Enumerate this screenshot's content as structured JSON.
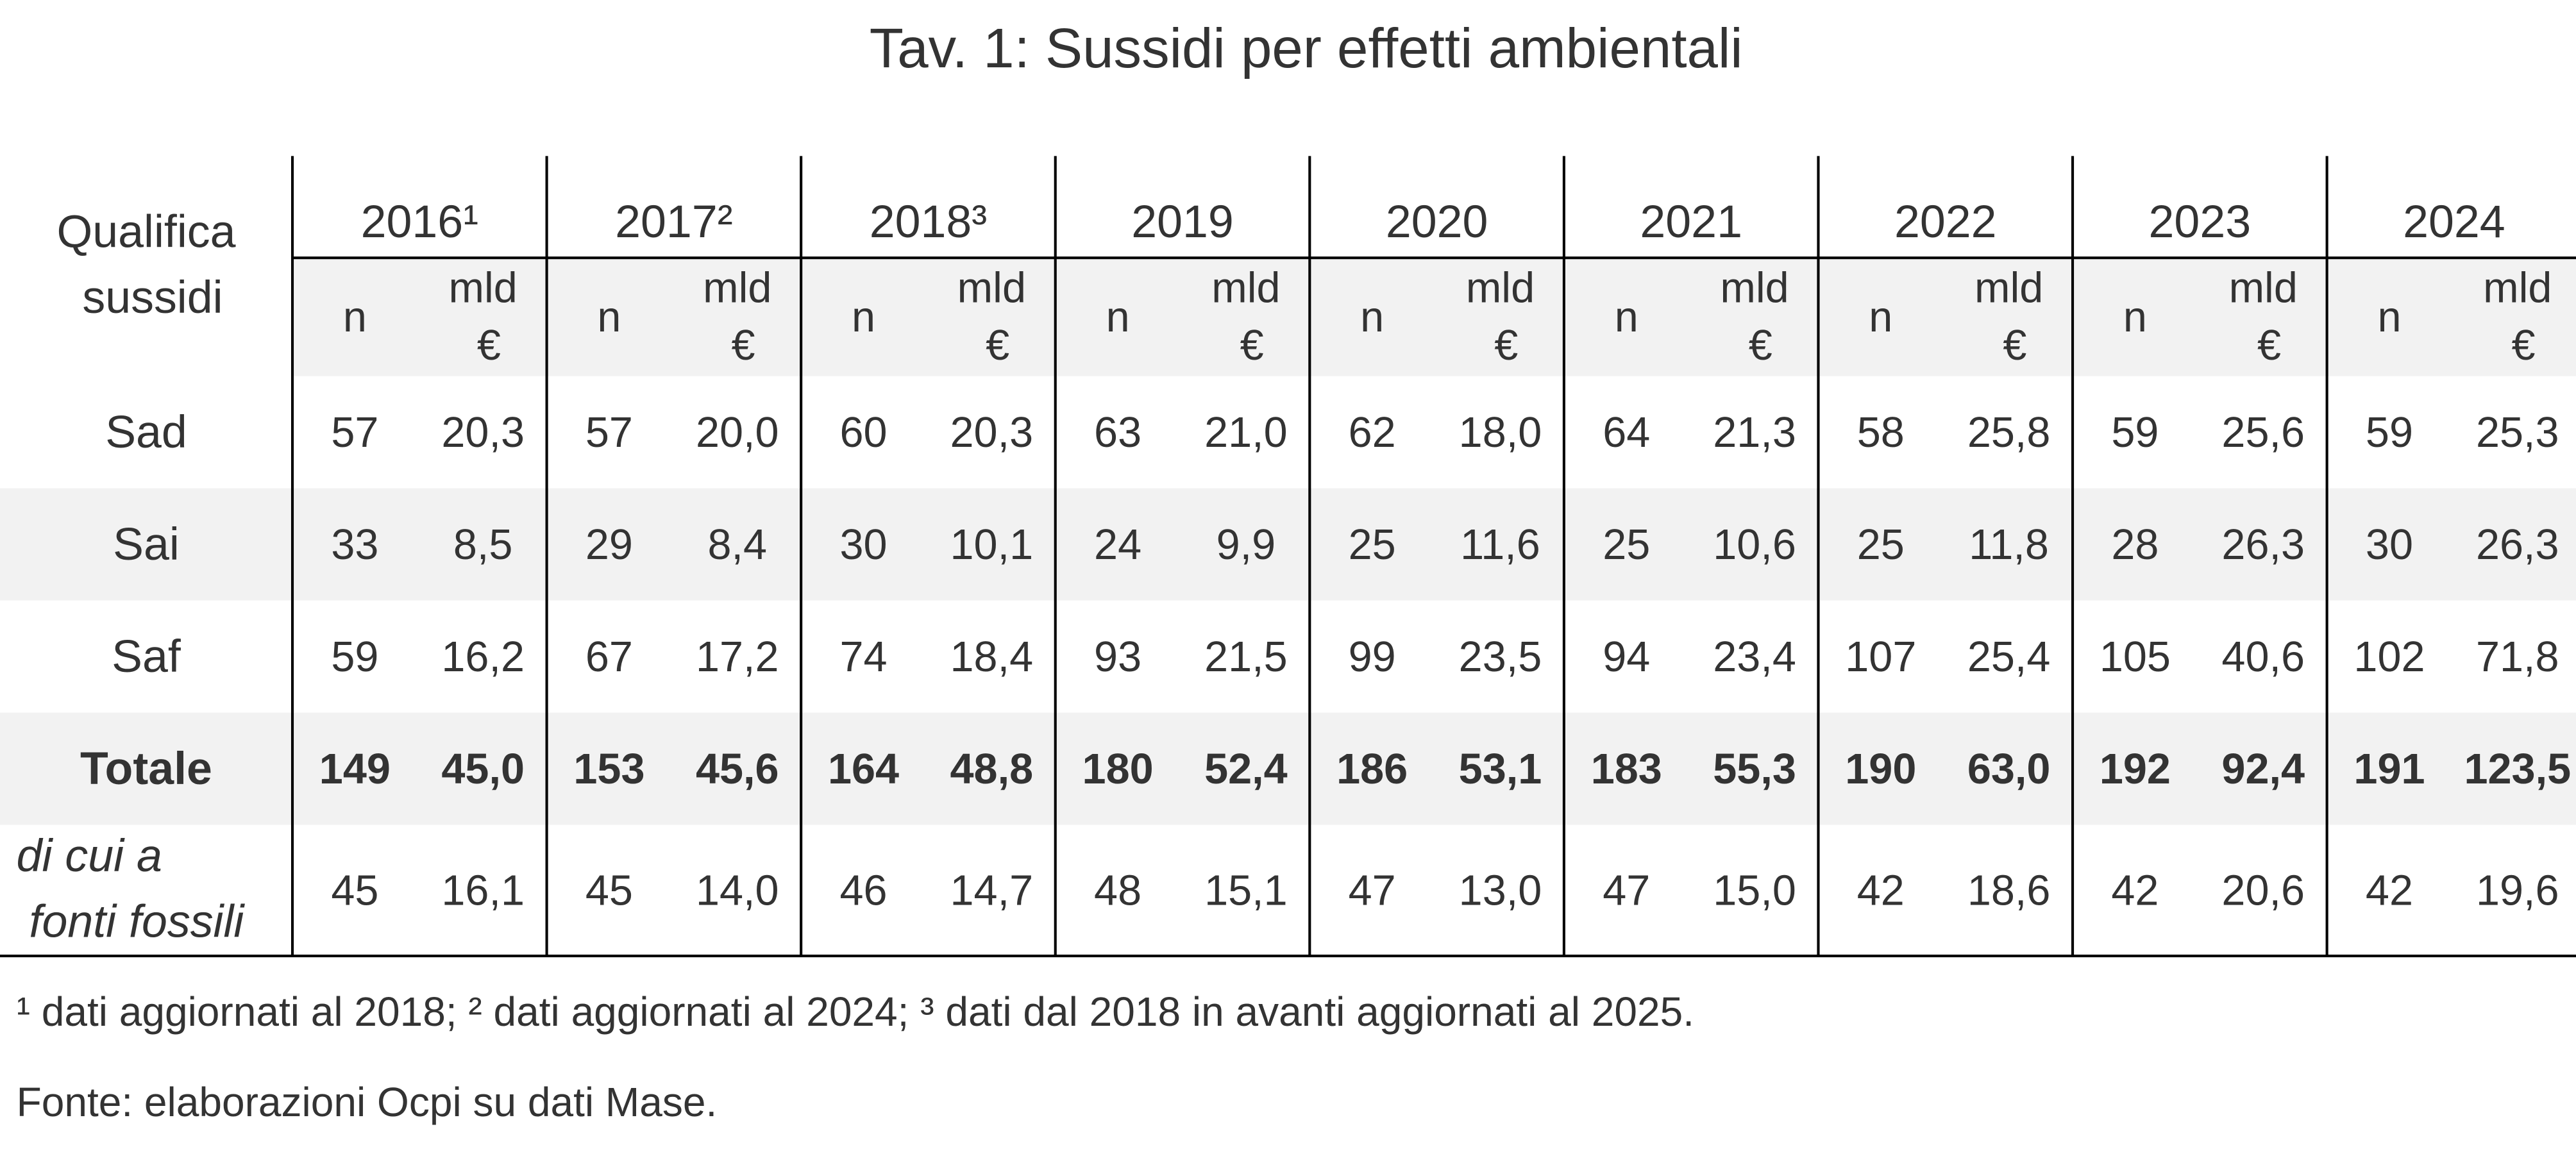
{
  "title": "Tav. 1: Sussidi per effetti ambientali",
  "table": {
    "corner": "Qualifica sussidi",
    "years": [
      "2016¹",
      "2017²",
      "2018³",
      "2019",
      "2020",
      "2021",
      "2022",
      "2023",
      "2024"
    ],
    "subheaders": [
      "n",
      "mld €"
    ],
    "rows": [
      {
        "label": "Sad",
        "cells": [
          "57",
          "20,3",
          "57",
          "20,0",
          "60",
          "20,3",
          "63",
          "21,0",
          "62",
          "18,0",
          "64",
          "21,3",
          "58",
          "25,8",
          "59",
          "25,6",
          "59",
          "25,3"
        ]
      },
      {
        "label": "Sai",
        "cells": [
          "33",
          "8,5",
          "29",
          "8,4",
          "30",
          "10,1",
          "24",
          "9,9",
          "25",
          "11,6",
          "25",
          "10,6",
          "25",
          "11,8",
          "28",
          "26,3",
          "30",
          "26,3"
        ]
      },
      {
        "label": "Saf",
        "cells": [
          "59",
          "16,2",
          "67",
          "17,2",
          "74",
          "18,4",
          "93",
          "21,5",
          "99",
          "23,5",
          "94",
          "23,4",
          "107",
          "25,4",
          "105",
          "40,6",
          "102",
          "71,8"
        ]
      },
      {
        "label": "Totale",
        "cells": [
          "149",
          "45,0",
          "153",
          "45,6",
          "164",
          "48,8",
          "180",
          "52,4",
          "186",
          "53,1",
          "183",
          "55,3",
          "190",
          "63,0",
          "192",
          "92,4",
          "191",
          "123,5"
        ]
      },
      {
        "label": "di cui a fonti fossili",
        "cells": [
          "45",
          "16,1",
          "45",
          "14,0",
          "46",
          "14,7",
          "48",
          "15,1",
          "47",
          "13,0",
          "47",
          "15,0",
          "42",
          "18,6",
          "42",
          "20,6",
          "42",
          "19,6"
        ]
      }
    ]
  },
  "notes": [
    "¹ dati aggiornati al 2018; ² dati aggiornati al 2024; ³ dati dal 2018 in avanti aggiornati al 2025.",
    "Fonte: elaborazioni Ocpi su dati Mase."
  ]
}
